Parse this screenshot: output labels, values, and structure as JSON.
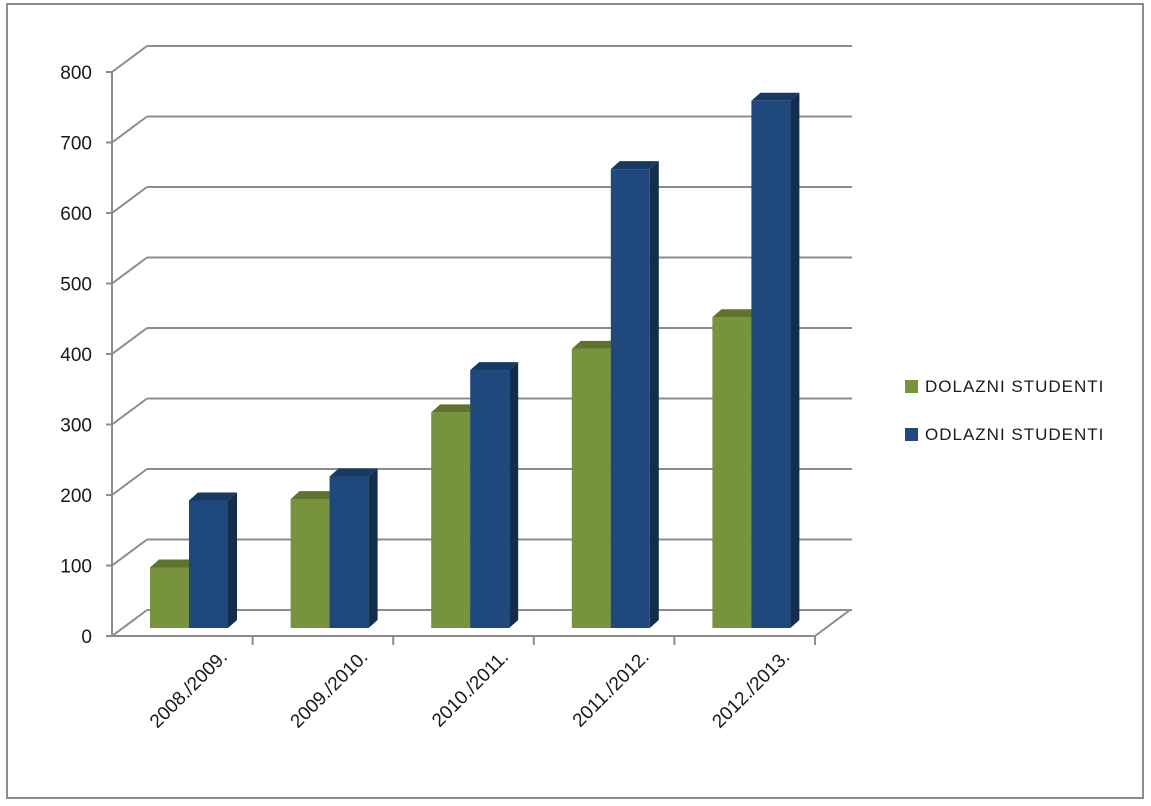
{
  "chart_data": {
    "type": "bar",
    "style": "3d-clustered-column",
    "title": "",
    "xlabel": "",
    "ylabel": "",
    "categories": [
      "2008./2009.",
      "2009./2010.",
      "2010./2011.",
      "2011./2012.",
      "2012./2013."
    ],
    "series": [
      {
        "name": "DOLAZNI STUDENTI",
        "color": "#77933c",
        "values": [
          83,
          180,
          303,
          393,
          438
        ]
      },
      {
        "name": "ODLAZNI STUDENTI",
        "color": "#1f497d",
        "values": [
          178,
          212,
          363,
          648,
          745
        ]
      }
    ],
    "ylim": [
      0,
      800
    ],
    "yticks": [
      "0",
      "100",
      "200",
      "300",
      "400",
      "500",
      "600",
      "700",
      "800"
    ],
    "grid": true,
    "legend_position": "right"
  }
}
